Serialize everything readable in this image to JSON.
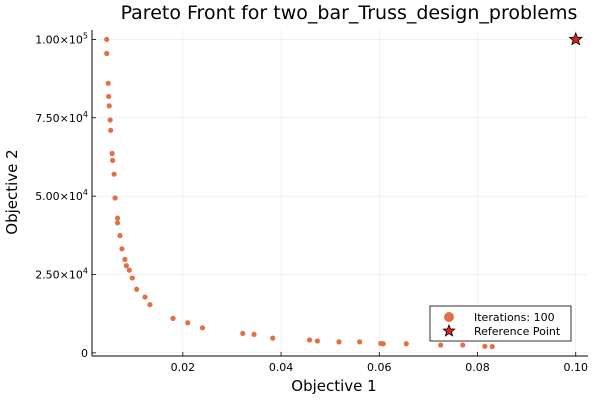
{
  "chart_data": {
    "type": "scatter",
    "title": "Pareto Front for two_bar_Truss_design_problems",
    "xlabel": "Objective 1",
    "ylabel": "Objective 2",
    "xlim": [
      0.0015,
      0.1025
    ],
    "ylim": [
      -1000,
      103000
    ],
    "x_ticks": [
      0.02,
      0.04,
      0.06,
      0.08,
      0.1
    ],
    "x_tick_labels": [
      "0.02",
      "0.04",
      "0.06",
      "0.08",
      "0.10"
    ],
    "y_ticks": [
      0,
      25000,
      50000,
      75000,
      100000
    ],
    "y_tick_labels": [
      {
        "mantissa": "0",
        "exp": ""
      },
      {
        "mantissa": "2.50×10",
        "exp": "4"
      },
      {
        "mantissa": "5.00×10",
        "exp": "4"
      },
      {
        "mantissa": "7.50×10",
        "exp": "4"
      },
      {
        "mantissa": "1.00×10",
        "exp": "5"
      }
    ],
    "grid": true,
    "legend_position": "bottom-right",
    "series": [
      {
        "name": "Iterations: 100",
        "color": "#e26f46",
        "marker": "circle",
        "points": [
          [
            0.0045,
            100000
          ],
          [
            0.0045,
            95500
          ],
          [
            0.0048,
            86000
          ],
          [
            0.0049,
            81800
          ],
          [
            0.005,
            78800
          ],
          [
            0.0052,
            74300
          ],
          [
            0.0053,
            71000
          ],
          [
            0.0056,
            63600
          ],
          [
            0.0057,
            61400
          ],
          [
            0.006,
            57000
          ],
          [
            0.0062,
            49400
          ],
          [
            0.0067,
            43000
          ],
          [
            0.0067,
            41500
          ],
          [
            0.0072,
            37400
          ],
          [
            0.0076,
            33200
          ],
          [
            0.0082,
            29800
          ],
          [
            0.0085,
            27800
          ],
          [
            0.0091,
            26400
          ],
          [
            0.0097,
            23900
          ],
          [
            0.0106,
            20300
          ],
          [
            0.0123,
            17800
          ],
          [
            0.0133,
            15400
          ],
          [
            0.018,
            11000
          ],
          [
            0.021,
            9600
          ],
          [
            0.024,
            8000
          ],
          [
            0.0322,
            6200
          ],
          [
            0.0345,
            5900
          ],
          [
            0.0383,
            4700
          ],
          [
            0.0458,
            4100
          ],
          [
            0.0474,
            3800
          ],
          [
            0.0518,
            3500
          ],
          [
            0.056,
            3500
          ],
          [
            0.0603,
            3000
          ],
          [
            0.0608,
            2900
          ],
          [
            0.0655,
            2900
          ],
          [
            0.0725,
            2500
          ],
          [
            0.077,
            2500
          ],
          [
            0.0815,
            2100
          ],
          [
            0.083,
            2000
          ]
        ]
      },
      {
        "name": "Reference Point",
        "color": "#e0201e",
        "marker": "star",
        "points": [
          [
            0.1,
            100000
          ]
        ]
      }
    ]
  }
}
